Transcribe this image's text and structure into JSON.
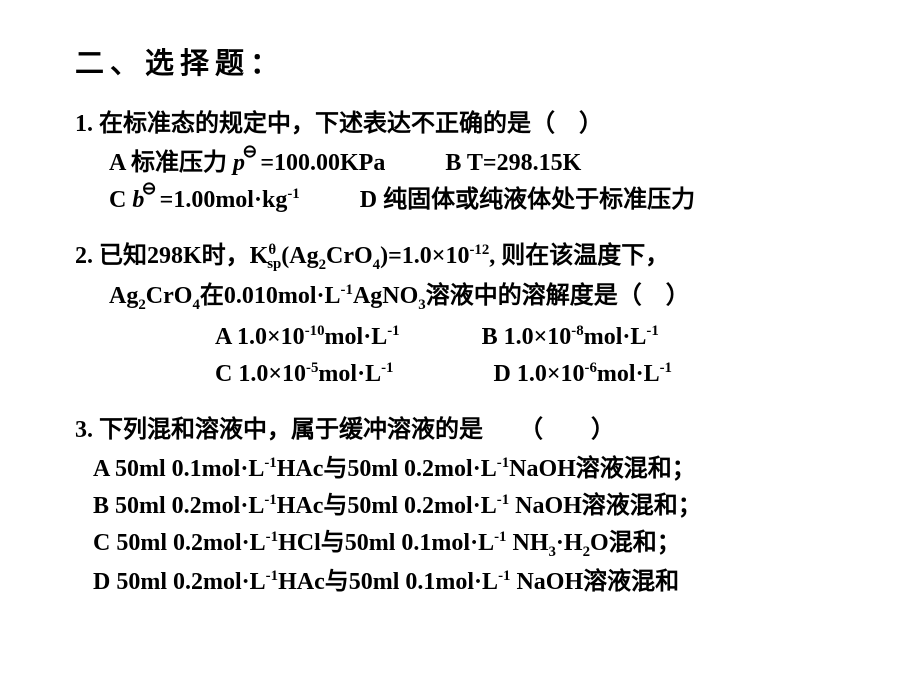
{
  "colors": {
    "bg": "#ffffff",
    "text": "#000000"
  },
  "typography": {
    "base_size_pt": 24,
    "title_size_pt": 29,
    "weight": "bold",
    "family": "SimSun/宋体"
  },
  "section_title": "二、选择题：",
  "q1": {
    "num": "1.",
    "stem": "在标准态的规定中，下述表达不正确的是（　）",
    "A_pre": "A  标准压力 ",
    "A_sym": "p",
    "A_post": " =100.00KPa",
    "B": "B  T=298.15K",
    "C_pre": "C  ",
    "C_sym": "b",
    "C_post": " =1.00mol·kg",
    "C_exp": "-1",
    "D": "D  纯固体或纯液体处于标准压力"
  },
  "q2": {
    "num": "2.",
    "stem1_pre": "已知298K时，K",
    "stem1_sup": "θ",
    "stem1_sub": "sp",
    "stem1_mid": "(Ag",
    "stem1_sub2": "2",
    "stem1_cr": "CrO",
    "stem1_sub3": "4",
    "stem1_eq": ")=1.0×10",
    "stem1_exp": "-12",
    "stem1_end": ", 则在该温度下，",
    "stem2_a": "Ag",
    "stem2_b": "CrO",
    "stem2_in": "在0.010mol·L",
    "stem2_agno": "AgNO",
    "stem2_tail": "溶液中的溶解度是（　）",
    "A_pre": "A  1.0×10",
    "A_exp": "-10",
    "A_unit": "mol·L",
    "A_u_exp": "-1",
    "B_pre": "B  1.0×10",
    "B_exp": "-8",
    "B_unit": "mol·L",
    "B_u_exp": "-1",
    "C_pre": "C  1.0×10",
    "C_exp": "-5",
    "C_unit": "mol·L",
    "C_u_exp": "-1",
    "D_pre": "D  1.0×10",
    "D_exp": "-6",
    "D_unit": "mol·L",
    "D_u_exp": "-1"
  },
  "q3": {
    "num": "3.",
    "stem": "下列混和溶液中，属于缓冲溶液的是　　（　　）",
    "A1": "A  50ml 0.1mol·L",
    "A2": "HAc与50ml 0.2mol·L",
    "A3": "NaOH溶液混和；",
    "B1": "B  50ml 0.2mol·L",
    "B2": "HAc与50ml 0.2mol·L",
    "B3": " NaOH溶液混和；",
    "C1": "C  50ml 0.2mol·L",
    "C2": "HCl与50ml 0.1mol·L",
    "C3": " NH",
    "C4": "·H",
    "C5": "O混和；",
    "D1": "D  50ml 0.2mol·L",
    "D2": "HAc与50ml 0.1mol·L",
    "D3": " NaOH溶液混和",
    "neg1": "-1",
    "three": "3",
    "two": "2"
  }
}
